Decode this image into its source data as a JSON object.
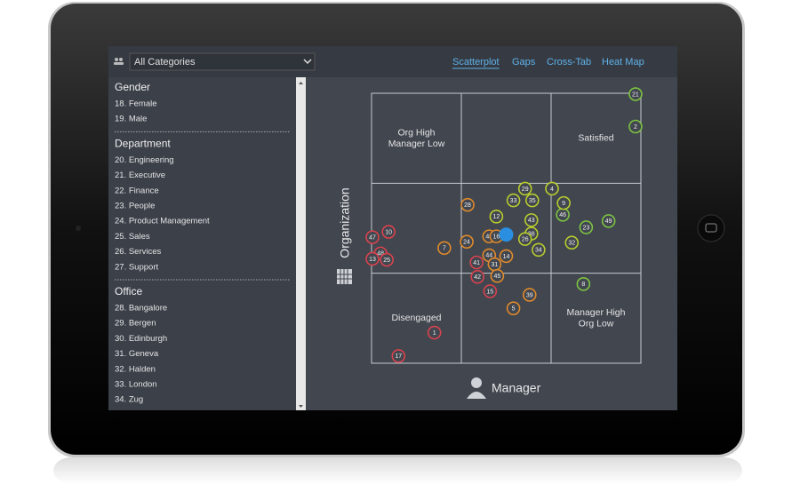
{
  "toolbar": {
    "dropdown": "All Categories",
    "tabs": [
      "Scatterplot",
      "Gaps",
      "Cross-Tab",
      "Heat Map"
    ],
    "active_tab": 0
  },
  "sidebar": [
    {
      "heading": "Gender",
      "items": [
        "18. Female",
        "19. Male"
      ]
    },
    {
      "heading": "Department",
      "items": [
        "20. Engineering",
        "21. Executive",
        "22. Finance",
        "23. People",
        "24. Product Management",
        "25. Sales",
        "26. Services",
        "27. Support"
      ]
    },
    {
      "heading": "Office",
      "items": [
        "28. Bangalore",
        "29. Bergen",
        "30. Edinburgh",
        "31. Geneva",
        "32. Halden",
        "33. London",
        "34. Zug"
      ]
    }
  ],
  "chart_data": {
    "type": "scatter",
    "x_label": "Manager",
    "y_label": "Organization",
    "quadrants": {
      "top_left": "Org High Manager Low",
      "top_right": "Satisfied",
      "bottom_left": "Disengaged",
      "bottom_right": "Manager High Org Low"
    },
    "xlim": [
      0,
      3
    ],
    "ylim": [
      0,
      3
    ],
    "series": [
      {
        "color": "#7dc242",
        "labels": [
          "21",
          "2",
          "46",
          "49",
          "23",
          "8"
        ],
        "x": [
          2.94,
          2.94,
          2.13,
          2.64,
          2.39,
          2.36
        ],
        "y": [
          2.99,
          2.63,
          1.65,
          1.58,
          1.51,
          0.88
        ]
      },
      {
        "color": "#b8cc2e",
        "labels": [
          "29",
          "4",
          "33",
          "35",
          "9",
          "43",
          "38",
          "26",
          "34",
          "32",
          "12"
        ],
        "x": [
          1.71,
          2.01,
          1.58,
          1.79,
          2.14,
          1.78,
          1.78,
          1.71,
          1.86,
          2.23,
          1.39
        ],
        "y": [
          1.94,
          1.94,
          1.81,
          1.81,
          1.78,
          1.59,
          1.44,
          1.38,
          1.26,
          1.34,
          1.63
        ]
      },
      {
        "color": "#e08a2b",
        "labels": [
          "28",
          "24",
          "7",
          "40",
          "16",
          "44",
          "14",
          "31",
          "45",
          "39",
          "5"
        ],
        "x": [
          1.07,
          1.06,
          0.81,
          1.31,
          1.39,
          1.31,
          1.5,
          1.37,
          1.4,
          1.76,
          1.58
        ],
        "y": [
          1.76,
          1.35,
          1.28,
          1.41,
          1.41,
          1.2,
          1.19,
          1.1,
          0.97,
          0.76,
          0.61
        ]
      },
      {
        "color": "#d9434e",
        "labels": [
          "47",
          "10",
          "48",
          "13",
          "25",
          "41",
          "42",
          "15",
          "1",
          "17"
        ],
        "x": [
          0.01,
          0.19,
          0.1,
          0.01,
          0.17,
          1.17,
          1.18,
          1.32,
          0.7,
          0.3
        ],
        "y": [
          1.4,
          1.46,
          1.22,
          1.16,
          1.15,
          1.12,
          0.96,
          0.8,
          0.34,
          0.08
        ]
      }
    ],
    "center": {
      "x": 1.5,
      "y": 1.43,
      "color": "#2a8fe0"
    }
  }
}
